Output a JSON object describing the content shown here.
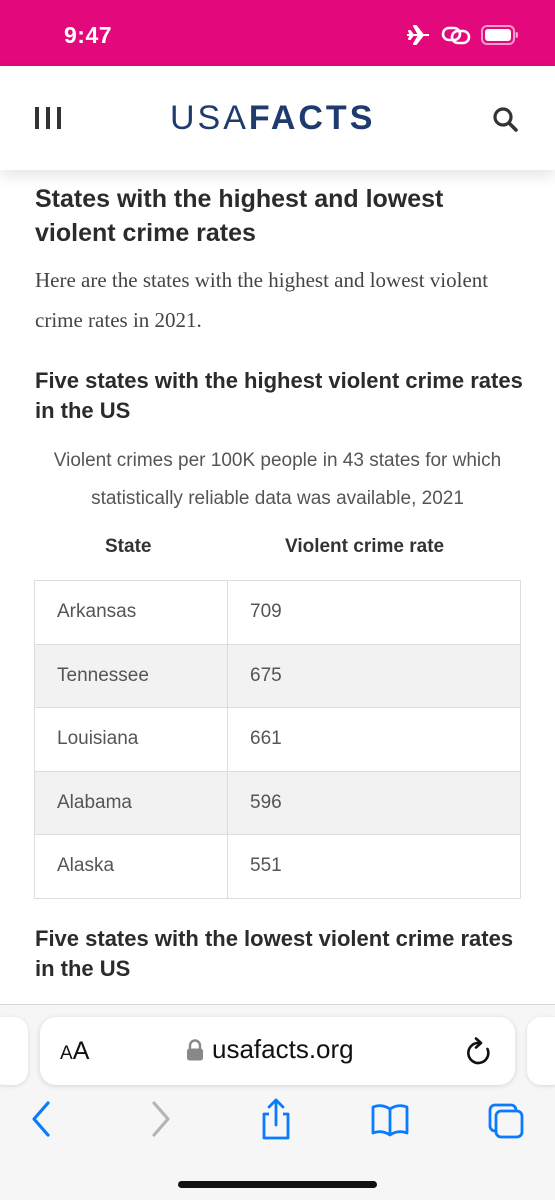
{
  "status_bar": {
    "time": "9:47",
    "bg_color": "#e3087b"
  },
  "header": {
    "logo_light": "USA",
    "logo_bold": "FACTS",
    "logo_color": "#1f3b6e"
  },
  "article": {
    "section_title": "States with the highest and lowest violent crime rates",
    "intro": "Here are the states with the highest and lowest violent crime rates in 2021.",
    "table1": {
      "title": "Five states with the highest violent crime rates in the US",
      "subtitle": "Violent crimes per 100K people in 43 states for which statistically reliable data was available, 2021",
      "columns": [
        "State",
        "Violent crime rate"
      ],
      "rows": [
        [
          "Arkansas",
          "709"
        ],
        [
          "Tennessee",
          "675"
        ],
        [
          "Louisiana",
          "661"
        ],
        [
          "Alabama",
          "596"
        ],
        [
          "Alaska",
          "551"
        ]
      ]
    },
    "table2": {
      "title": "Five states with the lowest violent crime rates in the US"
    }
  },
  "browser": {
    "text_size_button": {
      "small": "A",
      "large": "A"
    },
    "url": "usafacts.org",
    "accent_color": "#0a7aff"
  }
}
